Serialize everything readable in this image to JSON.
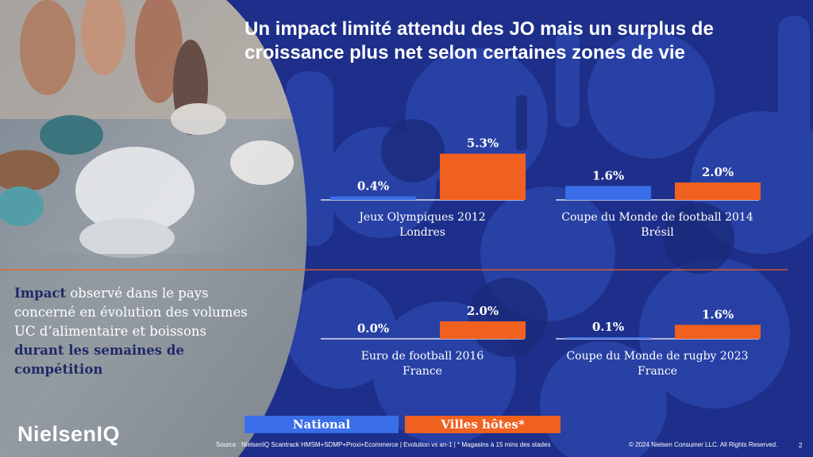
{
  "header": {
    "title_line1": "Un impact limité attendu des JO mais un surplus de",
    "title_line2": "croissance plus net selon certaines zones de vie"
  },
  "blurb": {
    "part1": "Impact",
    "part2": " observé dans le pays concerné en évolution des volumes UC d’alimentaire et boissons ",
    "part3": "durant les semaines de compétition"
  },
  "legend": {
    "national": "National",
    "hosts": "Villes hôtes*"
  },
  "brand": {
    "logo": "NielsenIQ"
  },
  "footer": {
    "source": "Source : NielsenIQ Scantrack HMSM+SDMP+Proxi+Ecommerce | Evolution vs an-1 | * Magasins à 15 mins des stades",
    "copyright": "© 2024 Nielsen Consumer LLC. All Rights Reserved.",
    "page": "2"
  },
  "colors": {
    "national": "#3a6ee8",
    "hosts": "#f0601f",
    "background": "#1d2f8a",
    "label_dark": "#1f2a66"
  },
  "chart_data": [
    {
      "type": "bar",
      "categories": [
        "National",
        "Villes hôtes*"
      ],
      "values": [
        0.4,
        5.3
      ],
      "labels": [
        "0.4%",
        "5.3%"
      ],
      "xlabel_line1": "Jeux Olympiques 2012",
      "xlabel_line2": "Londres"
    },
    {
      "type": "bar",
      "categories": [
        "National",
        "Villes hôtes*"
      ],
      "values": [
        1.6,
        2.0
      ],
      "labels": [
        "1.6%",
        "2.0%"
      ],
      "xlabel_line1": "Coupe du Monde de football 2014",
      "xlabel_line2": "Brésil"
    },
    {
      "type": "bar",
      "categories": [
        "National",
        "Villes hôtes*"
      ],
      "values": [
        0.0,
        2.0
      ],
      "labels": [
        "0.0%",
        "2.0%"
      ],
      "xlabel_line1": "Euro de football 2016",
      "xlabel_line2": "France"
    },
    {
      "type": "bar",
      "categories": [
        "National",
        "Villes hôtes*"
      ],
      "values": [
        0.1,
        1.6
      ],
      "labels": [
        "0.1%",
        "1.6%"
      ],
      "xlabel_line1": "Coupe du Monde de rugby 2023",
      "xlabel_line2": "France"
    }
  ]
}
